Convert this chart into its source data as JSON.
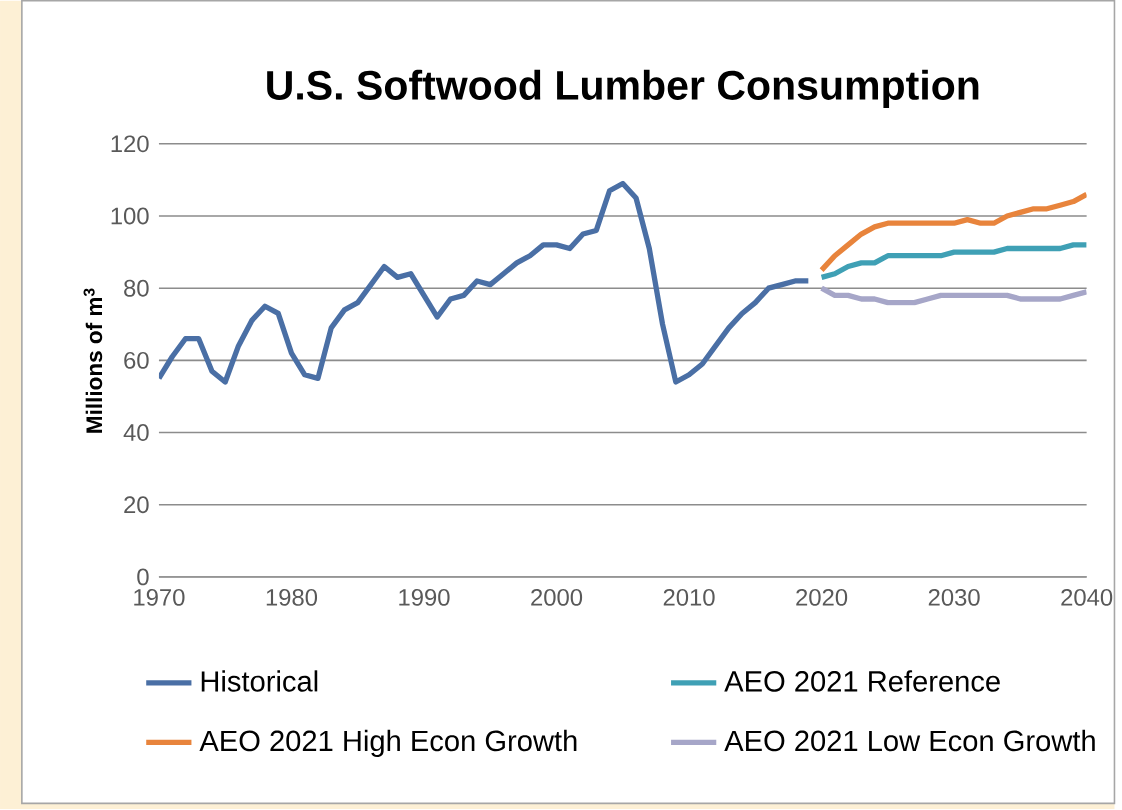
{
  "chart_data": {
    "type": "line",
    "title": "U.S. Softwood Lumber Consumption",
    "ylabel": "Millions of m$^{3}$",
    "xlim": [
      1970,
      2040
    ],
    "xticks": [
      1970,
      1980,
      1990,
      2000,
      2010,
      2020,
      2030,
      2040
    ],
    "ylim": [
      0,
      120
    ],
    "yticks": [
      0,
      20,
      40,
      60,
      80,
      100,
      120
    ],
    "grid": "y",
    "legend": "bottom",
    "series": [
      {
        "name": "Historical",
        "color": "#4a6fa5",
        "x": [
          1970,
          1971,
          1972,
          1973,
          1974,
          1975,
          1976,
          1977,
          1978,
          1979,
          1980,
          1981,
          1982,
          1983,
          1984,
          1985,
          1986,
          1987,
          1988,
          1989,
          1990,
          1991,
          1992,
          1993,
          1994,
          1995,
          1996,
          1997,
          1998,
          1999,
          2000,
          2001,
          2002,
          2003,
          2004,
          2005,
          2006,
          2007,
          2008,
          2009,
          2010,
          2011,
          2012,
          2013,
          2014,
          2015,
          2016,
          2017,
          2018,
          2019
        ],
        "values": [
          55,
          61,
          66,
          66,
          57,
          54,
          64,
          71,
          75,
          73,
          62,
          56,
          55,
          69,
          74,
          76,
          81,
          86,
          83,
          84,
          78,
          72,
          77,
          78,
          82,
          81,
          84,
          87,
          89,
          92,
          92,
          91,
          95,
          96,
          107,
          109,
          105,
          91,
          70,
          54,
          56,
          59,
          64,
          69,
          73,
          76,
          80,
          81,
          82,
          82
        ]
      },
      {
        "name": "AEO 2021 Reference",
        "color": "#3fa0b5",
        "x": [
          2020,
          2021,
          2022,
          2023,
          2024,
          2025,
          2026,
          2027,
          2028,
          2029,
          2030,
          2031,
          2032,
          2033,
          2034,
          2035,
          2036,
          2037,
          2038,
          2039,
          2040
        ],
        "values": [
          83,
          84,
          86,
          87,
          87,
          89,
          89,
          89,
          89,
          89,
          90,
          90,
          90,
          90,
          91,
          91,
          91,
          91,
          91,
          92,
          92
        ]
      },
      {
        "name": "AEO 2021 High Econ Growth",
        "color": "#e8843c",
        "x": [
          2020,
          2021,
          2022,
          2023,
          2024,
          2025,
          2026,
          2027,
          2028,
          2029,
          2030,
          2031,
          2032,
          2033,
          2034,
          2035,
          2036,
          2037,
          2038,
          2039,
          2040
        ],
        "values": [
          85,
          89,
          92,
          95,
          97,
          98,
          98,
          98,
          98,
          98,
          98,
          99,
          98,
          98,
          100,
          101,
          102,
          102,
          103,
          104,
          106
        ]
      },
      {
        "name": "AEO 2021 Low Econ Growth",
        "color": "#a6a6c8",
        "x": [
          2020,
          2021,
          2022,
          2023,
          2024,
          2025,
          2026,
          2027,
          2028,
          2029,
          2030,
          2031,
          2032,
          2033,
          2034,
          2035,
          2036,
          2037,
          2038,
          2039,
          2040
        ],
        "values": [
          80,
          78,
          78,
          77,
          77,
          76,
          76,
          76,
          77,
          78,
          78,
          78,
          78,
          78,
          78,
          77,
          77,
          77,
          77,
          78,
          79
        ]
      }
    ]
  }
}
